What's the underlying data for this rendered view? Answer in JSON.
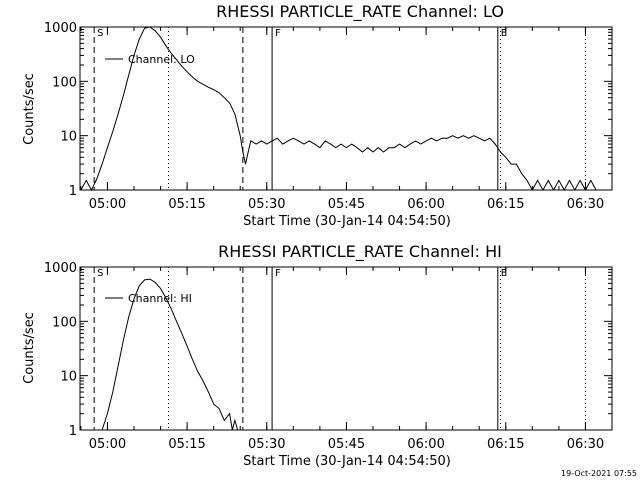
{
  "footer_timestamp": "19-Oct-2021 07:55",
  "chart_data": [
    {
      "type": "line",
      "title": "RHESSI PARTICLE_RATE Channel: LO",
      "xlabel": "Start Time (30-Jan-14 04:54:50)",
      "ylabel": "Counts/sec",
      "yscale": "log",
      "xlim": [
        "04:54:50",
        "06:35:00"
      ],
      "ylim": [
        1,
        1000
      ],
      "xticks": [
        "05:00",
        "05:15",
        "05:30",
        "05:45",
        "06:00",
        "06:15",
        "06:30"
      ],
      "yticks": [
        "1",
        "10",
        "100",
        "1000"
      ],
      "legend": "Channel: LO",
      "legend_position": "top-left",
      "markers": [
        {
          "time": "04:57:30",
          "style": "dashed",
          "label": "S"
        },
        {
          "time": "05:11:30",
          "style": "dotted",
          "label": ""
        },
        {
          "time": "05:25:30",
          "style": "dashed",
          "label": ""
        },
        {
          "time": "05:31:00",
          "style": "solid",
          "label": "F"
        },
        {
          "time": "06:13:30",
          "style": "solid",
          "label": "E"
        },
        {
          "time": "06:14:00",
          "style": "dotted",
          "label": ""
        },
        {
          "time": "06:30:00",
          "style": "dotted",
          "label": ""
        }
      ],
      "series": [
        {
          "name": "Channel: LO",
          "points": [
            [
              "04:55:00",
              1
            ],
            [
              "04:56:00",
              1.5
            ],
            [
              "04:57:00",
              1
            ],
            [
              "04:58:00",
              1.6
            ],
            [
              "04:59:00",
              3
            ],
            [
              "05:00:00",
              6
            ],
            [
              "05:01:00",
              12
            ],
            [
              "05:02:00",
              25
            ],
            [
              "05:03:00",
              55
            ],
            [
              "05:04:00",
              130
            ],
            [
              "05:05:00",
              300
            ],
            [
              "05:06:00",
              600
            ],
            [
              "05:07:00",
              950
            ],
            [
              "05:08:00",
              1000
            ],
            [
              "05:09:00",
              850
            ],
            [
              "05:10:00",
              650
            ],
            [
              "05:11:00",
              450
            ],
            [
              "05:12:00",
              330
            ],
            [
              "05:13:00",
              250
            ],
            [
              "05:14:00",
              190
            ],
            [
              "05:15:00",
              150
            ],
            [
              "05:16:00",
              120
            ],
            [
              "05:17:00",
              100
            ],
            [
              "05:18:00",
              88
            ],
            [
              "05:19:00",
              78
            ],
            [
              "05:20:00",
              70
            ],
            [
              "05:21:00",
              62
            ],
            [
              "05:22:00",
              50
            ],
            [
              "05:23:00",
              40
            ],
            [
              "05:24:00",
              25
            ],
            [
              "05:25:00",
              10
            ],
            [
              "05:25:30",
              5
            ],
            [
              "05:26:00",
              3
            ],
            [
              "05:26:30",
              5
            ],
            [
              "05:27:00",
              8
            ],
            [
              "05:28:00",
              7
            ],
            [
              "05:29:00",
              8
            ],
            [
              "05:30:00",
              7
            ],
            [
              "05:31:00",
              8
            ],
            [
              "05:32:00",
              9
            ],
            [
              "05:33:00",
              7
            ],
            [
              "05:34:00",
              8
            ],
            [
              "05:35:00",
              9
            ],
            [
              "05:36:00",
              8
            ],
            [
              "05:37:00",
              7
            ],
            [
              "05:38:00",
              8
            ],
            [
              "05:39:00",
              7
            ],
            [
              "05:40:00",
              6
            ],
            [
              "05:41:00",
              8
            ],
            [
              "05:42:00",
              7
            ],
            [
              "05:43:00",
              6
            ],
            [
              "05:44:00",
              7
            ],
            [
              "05:45:00",
              6
            ],
            [
              "05:46:00",
              7
            ],
            [
              "05:47:00",
              6
            ],
            [
              "05:48:00",
              5
            ],
            [
              "05:49:00",
              6
            ],
            [
              "05:50:00",
              5
            ],
            [
              "05:51:00",
              6
            ],
            [
              "05:52:00",
              5
            ],
            [
              "05:53:00",
              6
            ],
            [
              "05:54:00",
              6
            ],
            [
              "05:55:00",
              7
            ],
            [
              "05:56:00",
              6
            ],
            [
              "05:57:00",
              7
            ],
            [
              "05:58:00",
              8
            ],
            [
              "05:59:00",
              7
            ],
            [
              "06:00:00",
              8
            ],
            [
              "06:01:00",
              9
            ],
            [
              "06:02:00",
              8
            ],
            [
              "06:03:00",
              9
            ],
            [
              "06:04:00",
              9
            ],
            [
              "06:05:00",
              10
            ],
            [
              "06:06:00",
              9
            ],
            [
              "06:07:00",
              10
            ],
            [
              "06:08:00",
              9
            ],
            [
              "06:09:00",
              10
            ],
            [
              "06:10:00",
              9
            ],
            [
              "06:11:00",
              8
            ],
            [
              "06:12:00",
              9
            ],
            [
              "06:13:00",
              7
            ],
            [
              "06:14:00",
              5
            ],
            [
              "06:15:00",
              4
            ],
            [
              "06:16:00",
              3
            ],
            [
              "06:17:00",
              3
            ],
            [
              "06:18:00",
              2
            ],
            [
              "06:19:00",
              1.5
            ],
            [
              "06:20:00",
              1
            ],
            [
              "06:21:00",
              1.5
            ],
            [
              "06:22:00",
              1
            ],
            [
              "06:23:00",
              1.5
            ],
            [
              "06:24:00",
              1
            ],
            [
              "06:25:00",
              1.5
            ],
            [
              "06:26:00",
              1
            ],
            [
              "06:27:00",
              1.5
            ],
            [
              "06:28:00",
              1
            ],
            [
              "06:29:00",
              1.5
            ],
            [
              "06:30:00",
              1
            ],
            [
              "06:31:00",
              1.5
            ],
            [
              "06:32:00",
              1
            ]
          ]
        }
      ]
    },
    {
      "type": "line",
      "title": "RHESSI PARTICLE_RATE Channel: HI",
      "xlabel": "Start Time (30-Jan-14 04:54:50)",
      "ylabel": "Counts/sec",
      "yscale": "log",
      "xlim": [
        "04:54:50",
        "06:35:00"
      ],
      "ylim": [
        1,
        1000
      ],
      "xticks": [
        "05:00",
        "05:15",
        "05:30",
        "05:45",
        "06:00",
        "06:15",
        "06:30"
      ],
      "yticks": [
        "1",
        "10",
        "100",
        "1000"
      ],
      "legend": "Channel: HI",
      "legend_position": "top-left",
      "markers": [
        {
          "time": "04:57:30",
          "style": "dashed",
          "label": "S"
        },
        {
          "time": "05:11:30",
          "style": "dotted",
          "label": ""
        },
        {
          "time": "05:25:30",
          "style": "dashed",
          "label": ""
        },
        {
          "time": "05:31:00",
          "style": "solid",
          "label": "F"
        },
        {
          "time": "06:13:30",
          "style": "solid",
          "label": "E"
        },
        {
          "time": "06:14:00",
          "style": "dotted",
          "label": ""
        },
        {
          "time": "06:30:00",
          "style": "dotted",
          "label": ""
        }
      ],
      "series": [
        {
          "name": "Channel: HI",
          "points": [
            [
              "04:59:00",
              1
            ],
            [
              "05:00:00",
              2
            ],
            [
              "05:01:00",
              5
            ],
            [
              "05:02:00",
              15
            ],
            [
              "05:03:00",
              45
            ],
            [
              "05:04:00",
              120
            ],
            [
              "05:05:00",
              260
            ],
            [
              "05:06:00",
              450
            ],
            [
              "05:07:00",
              580
            ],
            [
              "05:08:00",
              600
            ],
            [
              "05:09:00",
              520
            ],
            [
              "05:10:00",
              400
            ],
            [
              "05:11:00",
              270
            ],
            [
              "05:12:00",
              170
            ],
            [
              "05:13:00",
              100
            ],
            [
              "05:14:00",
              60
            ],
            [
              "05:15:00",
              35
            ],
            [
              "05:16:00",
              20
            ],
            [
              "05:17:00",
              12
            ],
            [
              "05:18:00",
              8
            ],
            [
              "05:19:00",
              5
            ],
            [
              "05:20:00",
              3
            ],
            [
              "05:21:00",
              2.5
            ],
            [
              "05:22:00",
              1.5
            ],
            [
              "05:23:00",
              2
            ],
            [
              "05:23:30",
              1
            ],
            [
              "05:24:00",
              1.5
            ],
            [
              "05:24:30",
              1
            ]
          ]
        }
      ]
    }
  ]
}
